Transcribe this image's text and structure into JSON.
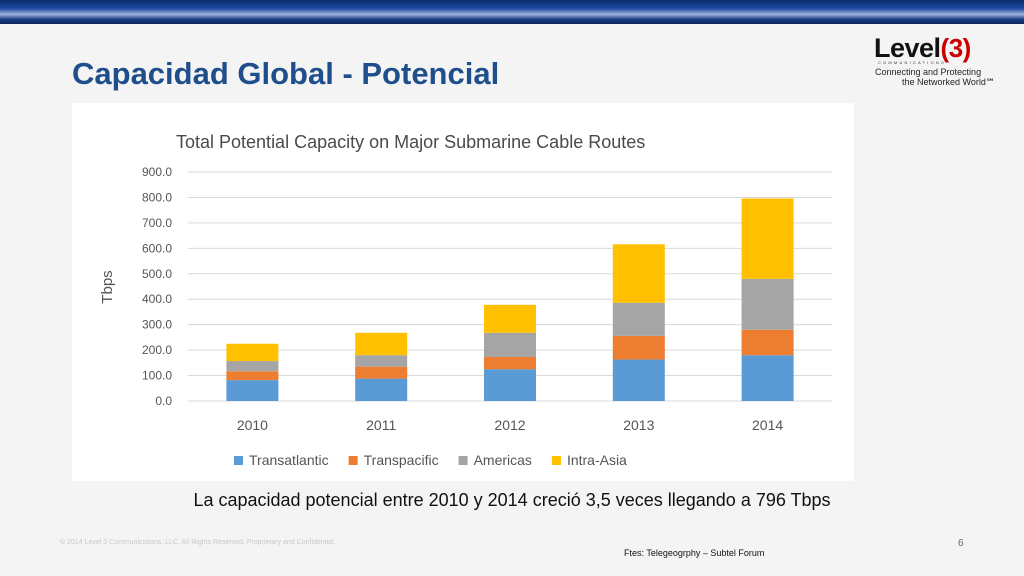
{
  "slide": {
    "title": "Capacidad Global - Potencial",
    "caption": "La capacidad potencial entre 2010 y 2014 creció 3,5 veces llegando a 796 Tbps",
    "copyright": "© 2014 Level 3 Communications, LLC. All Rights Reserved. Proprietary and Confidential.",
    "page_number": "6",
    "source": "Ftes: Telegeogrphy – Subtel Forum"
  },
  "logo": {
    "brand": "Level",
    "brand_number": "(3)",
    "subline": "COMMUNICATIONS",
    "tagline_1": "Connecting and Protecting",
    "tagline_2": "the Networked World℠"
  },
  "chart_data": {
    "type": "bar",
    "stacked": true,
    "title": "Total Potential Capacity on Major Submarine Cable Routes",
    "xlabel": "",
    "ylabel": "Tbps",
    "ylim": [
      0,
      900
    ],
    "yticks": [
      "0.0",
      "100.0",
      "200.0",
      "300.0",
      "400.0",
      "500.0",
      "600.0",
      "700.0",
      "800.0",
      "900.0"
    ],
    "grid": true,
    "legend_position": "bottom",
    "categories": [
      "2010",
      "2011",
      "2012",
      "2013",
      "2014"
    ],
    "series": [
      {
        "name": "Transatlantic",
        "color": "#5b9bd5",
        "values": [
          82,
          88,
          125,
          163,
          180
        ]
      },
      {
        "name": "Transpacific",
        "color": "#ed7d31",
        "values": [
          35,
          47,
          48,
          93,
          100
        ]
      },
      {
        "name": "Americas",
        "color": "#a5a5a5",
        "values": [
          40,
          45,
          95,
          130,
          200
        ]
      },
      {
        "name": "Intra-Asia",
        "color": "#ffc000",
        "values": [
          68,
          88,
          110,
          230,
          316
        ]
      }
    ]
  }
}
